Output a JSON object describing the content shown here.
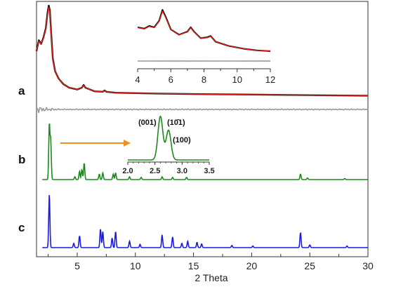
{
  "chart_data": [
    {
      "id": "main",
      "type": "line",
      "xlabel": "2 Theta",
      "xlim": [
        1.5,
        30
      ],
      "xticks": [
        5,
        10,
        15,
        20,
        25,
        30
      ],
      "panels": [
        {
          "label": "a",
          "series": [
            {
              "role": "measured",
              "color": "#111111",
              "points": [
                [
                  1.5,
                  0.5
                ],
                [
                  1.7,
                  0.62
                ],
                [
                  1.9,
                  0.58
                ],
                [
                  2.1,
                  0.65
                ],
                [
                  2.3,
                  0.75
                ],
                [
                  2.45,
                  0.92
                ],
                [
                  2.55,
                  1.0
                ],
                [
                  2.65,
                  0.95
                ],
                [
                  2.75,
                  0.72
                ],
                [
                  2.9,
                  0.42
                ],
                [
                  3.1,
                  0.28
                ],
                [
                  3.4,
                  0.2
                ],
                [
                  3.8,
                  0.14
                ],
                [
                  4.3,
                  0.1
                ],
                [
                  5.0,
                  0.08
                ],
                [
                  5.4,
                  0.1
                ],
                [
                  5.55,
                  0.13
                ],
                [
                  5.7,
                  0.1
                ],
                [
                  6.5,
                  0.06
                ],
                [
                  7.2,
                  0.055
                ],
                [
                  7.35,
                  0.07
                ],
                [
                  7.5,
                  0.055
                ],
                [
                  8.3,
                  0.045
                ],
                [
                  10,
                  0.04
                ],
                [
                  12,
                  0.035
                ],
                [
                  15,
                  0.03
                ],
                [
                  20,
                  0.025
                ],
                [
                  25,
                  0.018
                ],
                [
                  30,
                  0.012
                ]
              ]
            },
            {
              "role": "calculated",
              "color": "#e0201b",
              "points": [
                [
                  1.5,
                  0.5
                ],
                [
                  1.7,
                  0.61
                ],
                [
                  1.9,
                  0.58
                ],
                [
                  2.1,
                  0.64
                ],
                [
                  2.3,
                  0.74
                ],
                [
                  2.45,
                  0.9
                ],
                [
                  2.55,
                  0.98
                ],
                [
                  2.65,
                  0.93
                ],
                [
                  2.75,
                  0.71
                ],
                [
                  2.9,
                  0.41
                ],
                [
                  3.1,
                  0.28
                ],
                [
                  3.4,
                  0.2
                ],
                [
                  3.8,
                  0.14
                ],
                [
                  4.3,
                  0.1
                ],
                [
                  5.0,
                  0.08
                ],
                [
                  5.4,
                  0.1
                ],
                [
                  5.55,
                  0.125
                ],
                [
                  5.7,
                  0.1
                ],
                [
                  6.5,
                  0.06
                ],
                [
                  7.2,
                  0.055
                ],
                [
                  7.35,
                  0.068
                ],
                [
                  7.5,
                  0.055
                ],
                [
                  8.3,
                  0.045
                ],
                [
                  10,
                  0.04
                ],
                [
                  12,
                  0.035
                ],
                [
                  15,
                  0.03
                ],
                [
                  20,
                  0.025
                ],
                [
                  25,
                  0.018
                ],
                [
                  30,
                  0.012
                ]
              ]
            },
            {
              "role": "difference",
              "color": "#999999",
              "points": [
                [
                  1.5,
                  0.0
                ],
                [
                  2.0,
                  0.03
                ],
                [
                  2.5,
                  -0.03
                ],
                [
                  3.0,
                  0.02
                ],
                [
                  3.5,
                  -0.02
                ],
                [
                  4.0,
                  0.01
                ],
                [
                  5.0,
                  0.0
                ],
                [
                  30,
                  0.0
                ]
              ]
            }
          ]
        },
        {
          "label": "b",
          "color": "#1a8a1a",
          "peaks": [
            [
              2.6,
              1.0
            ],
            [
              2.72,
              0.72
            ],
            [
              4.8,
              0.05
            ],
            [
              5.2,
              0.15
            ],
            [
              5.4,
              0.18
            ],
            [
              5.6,
              0.3
            ],
            [
              6.9,
              0.1
            ],
            [
              7.2,
              0.12
            ],
            [
              8.1,
              0.1
            ],
            [
              8.3,
              0.12
            ],
            [
              9.5,
              0.05
            ],
            [
              10.5,
              0.04
            ],
            [
              12.3,
              0.05
            ],
            [
              13.2,
              0.04
            ],
            [
              14.4,
              0.04
            ],
            [
              24.2,
              0.1
            ],
            [
              24.8,
              0.03
            ],
            [
              28,
              0.02
            ]
          ]
        },
        {
          "label": "c",
          "color": "#1a1ae0",
          "peaks": [
            [
              2.6,
              1.0
            ],
            [
              4.7,
              0.08
            ],
            [
              5.2,
              0.22
            ],
            [
              7.0,
              0.35
            ],
            [
              7.2,
              0.3
            ],
            [
              8.0,
              0.18
            ],
            [
              8.3,
              0.3
            ],
            [
              9.5,
              0.12
            ],
            [
              10.4,
              0.06
            ],
            [
              12.3,
              0.24
            ],
            [
              13.2,
              0.2
            ],
            [
              14.0,
              0.08
            ],
            [
              14.5,
              0.12
            ],
            [
              15.3,
              0.1
            ],
            [
              15.7,
              0.07
            ],
            [
              18.3,
              0.04
            ],
            [
              20.1,
              0.03
            ],
            [
              24.2,
              0.28
            ],
            [
              25.0,
              0.05
            ],
            [
              28.2,
              0.03
            ]
          ]
        }
      ]
    },
    {
      "id": "inset-a",
      "type": "line",
      "xlim": [
        4,
        12
      ],
      "xticks": [
        "4",
        "6",
        "8",
        "10",
        "12"
      ],
      "series": [
        {
          "role": "measured",
          "color": "#111111",
          "points": [
            [
              4,
              0.55
            ],
            [
              4.4,
              0.52
            ],
            [
              4.7,
              0.58
            ],
            [
              5.0,
              0.55
            ],
            [
              5.3,
              0.7
            ],
            [
              5.5,
              0.95
            ],
            [
              5.7,
              0.78
            ],
            [
              6.0,
              0.5
            ],
            [
              6.5,
              0.38
            ],
            [
              7.0,
              0.45
            ],
            [
              7.2,
              0.55
            ],
            [
              7.4,
              0.45
            ],
            [
              7.8,
              0.3
            ],
            [
              8.2,
              0.32
            ],
            [
              8.4,
              0.35
            ],
            [
              8.7,
              0.22
            ],
            [
              9.5,
              0.12
            ],
            [
              10.5,
              0.05
            ],
            [
              11.2,
              0.02
            ],
            [
              12,
              0.0
            ]
          ]
        },
        {
          "role": "calculated",
          "color": "#e0201b",
          "points": [
            [
              4,
              0.54
            ],
            [
              4.4,
              0.51
            ],
            [
              4.7,
              0.57
            ],
            [
              5.0,
              0.54
            ],
            [
              5.3,
              0.69
            ],
            [
              5.5,
              0.92
            ],
            [
              5.7,
              0.76
            ],
            [
              6.0,
              0.5
            ],
            [
              6.5,
              0.38
            ],
            [
              7.0,
              0.44
            ],
            [
              7.2,
              0.54
            ],
            [
              7.4,
              0.44
            ],
            [
              7.8,
              0.3
            ],
            [
              8.2,
              0.31
            ],
            [
              8.4,
              0.34
            ],
            [
              8.7,
              0.22
            ],
            [
              9.5,
              0.12
            ],
            [
              10.5,
              0.05
            ],
            [
              11.2,
              0.02
            ],
            [
              12,
              0.0
            ]
          ]
        },
        {
          "role": "difference",
          "color": "#999999",
          "points": [
            [
              4,
              0.0
            ],
            [
              12,
              0.0
            ]
          ]
        }
      ]
    },
    {
      "id": "inset-b",
      "type": "line",
      "color": "#1a8a1a",
      "xlim": [
        2.0,
        3.5
      ],
      "xticks": [
        "2.0",
        "2.5",
        "3.0",
        "3.5"
      ],
      "annotations": [
        "(001)",
        "(10̄1)",
        "(100)"
      ],
      "peaks": [
        [
          2.6,
          1.0
        ],
        [
          2.75,
          0.68
        ]
      ]
    }
  ]
}
